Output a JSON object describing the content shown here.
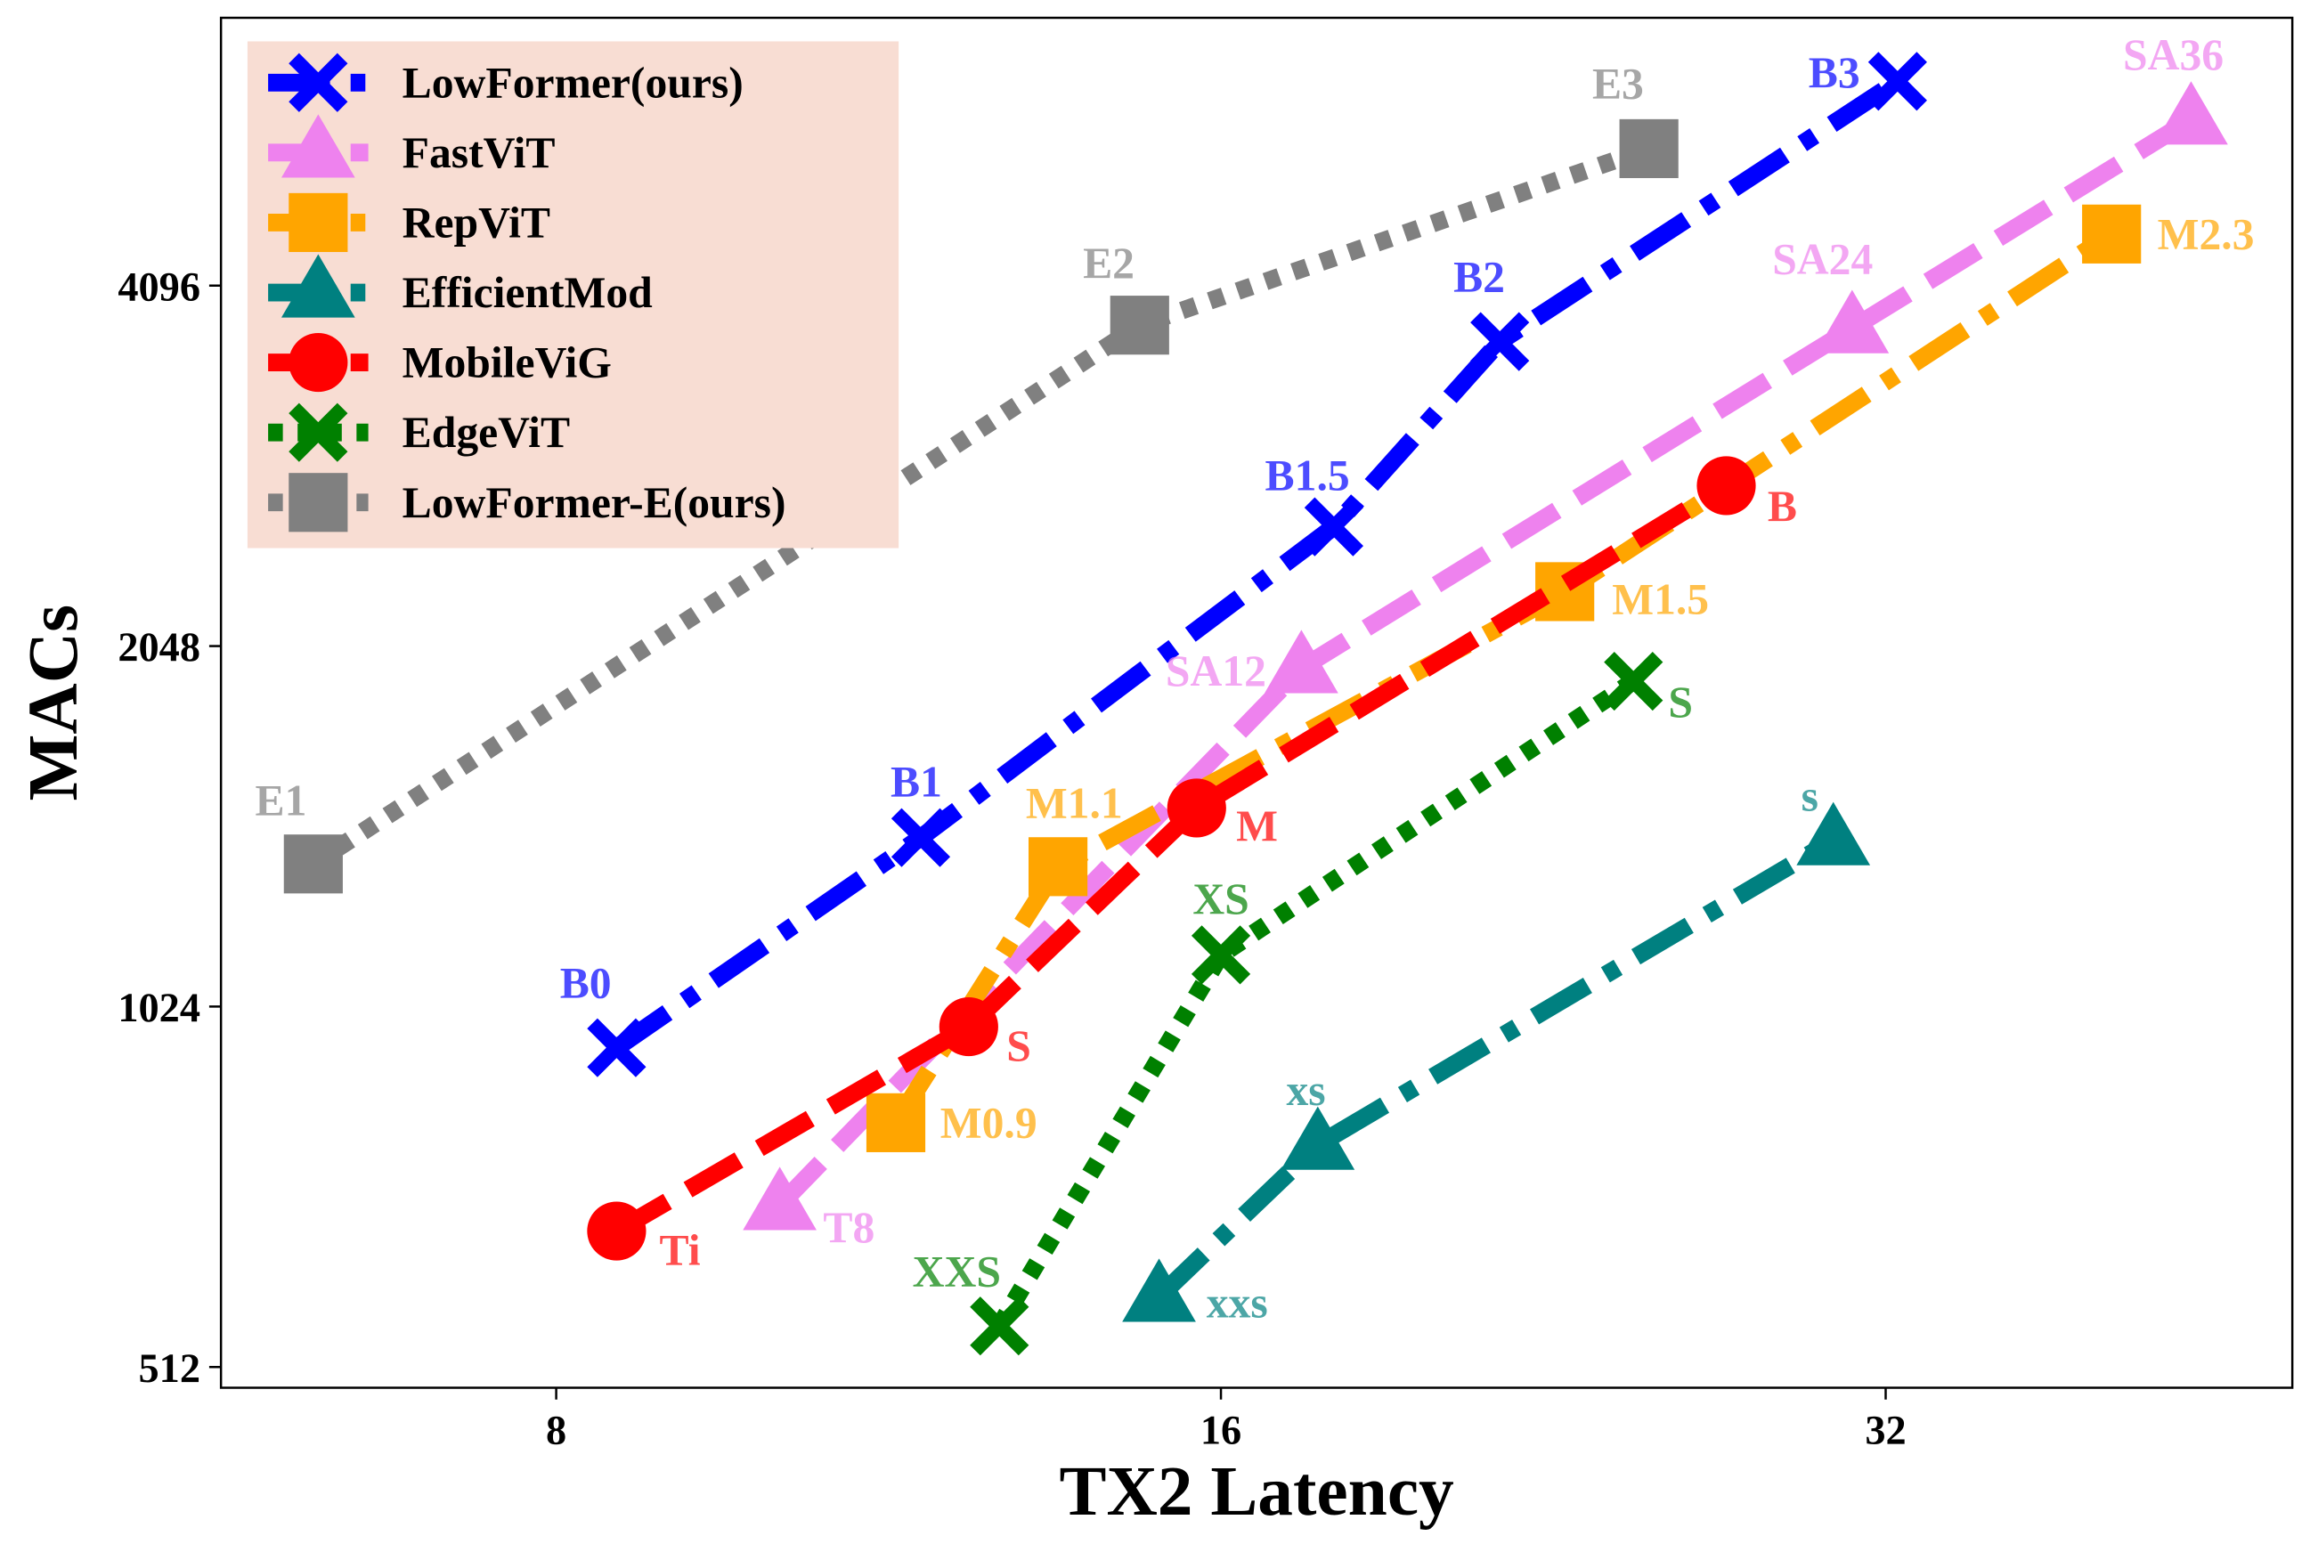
{
  "chart_data": {
    "type": "line",
    "x_label": "TX2 Latency",
    "y_label": "MACs",
    "xscale": "log",
    "yscale": "log",
    "xlim": [
      5.64,
      48.9
    ],
    "ylim": [
      492,
      6855
    ],
    "xticks": [
      8,
      16,
      32
    ],
    "yticks": [
      512,
      1024,
      2048,
      4096
    ],
    "legend": "upper left",
    "legend_color": "#f8ddd3",
    "series": [
      {
        "name": "LowFormer(ours)",
        "color": "#0000ff",
        "marker": "X",
        "line_style": "dashdot",
        "x": [
          8.52,
          11.7,
          18.0,
          21.4,
          32.4
        ],
        "values": [
          946,
          1417,
          2576,
          3678,
          6067
        ],
        "point_labels": [
          "B0",
          "B1",
          "B1.5",
          "B2",
          "B3"
        ]
      },
      {
        "name": "FastViT",
        "color": "#ee82ee",
        "marker": "triangle",
        "line_style": "dashed",
        "x": [
          10.1,
          17.4,
          30.9,
          44.0
        ],
        "values": [
          699,
          1963,
          3774,
          5637
        ],
        "point_labels": [
          "T8",
          "SA12",
          "SA24",
          "SA36"
        ]
      },
      {
        "name": "RepViT",
        "color": "#ffa500",
        "marker": "square",
        "line_style": "dashdot",
        "x": [
          11.4,
          13.5,
          22.9,
          40.5
        ],
        "values": [
          819,
          1340,
          2274,
          4523
        ],
        "point_labels": [
          "M0.9",
          "M1.1",
          "M1.5",
          "M2.3"
        ]
      },
      {
        "name": "EfficientMod",
        "color": "#008080",
        "marker": "triangle",
        "line_style": "dashdot",
        "x": [
          15.0,
          17.7,
          30.3
        ],
        "values": [
          586,
          785,
          1410
        ],
        "point_labels": [
          "xxs",
          "xs",
          "s"
        ]
      },
      {
        "name": "MobileViG",
        "color": "#ff0000",
        "marker": "circle",
        "line_style": "dashed",
        "x": [
          8.52,
          12.3,
          15.6,
          27.1
        ],
        "values": [
          665,
          985,
          1500,
          2788
        ],
        "point_labels": [
          "Ti",
          "S",
          "M",
          "B"
        ]
      },
      {
        "name": "EdgeViT",
        "color": "#008000",
        "marker": "X",
        "line_style": "dotted",
        "x": [
          12.7,
          16.0,
          24.6
        ],
        "values": [
          554,
          1131,
          1914
        ],
        "point_labels": [
          "XXS",
          "XS",
          "S"
        ]
      },
      {
        "name": "LowFormer-E(ours)",
        "color": "#808080",
        "marker": "square",
        "line_style": "dotted",
        "x": [
          6.21,
          14.7,
          25.0
        ],
        "values": [
          1347,
          3796,
          5330
        ],
        "point_labels": [
          "E1",
          "E2",
          "E3"
        ]
      }
    ]
  }
}
